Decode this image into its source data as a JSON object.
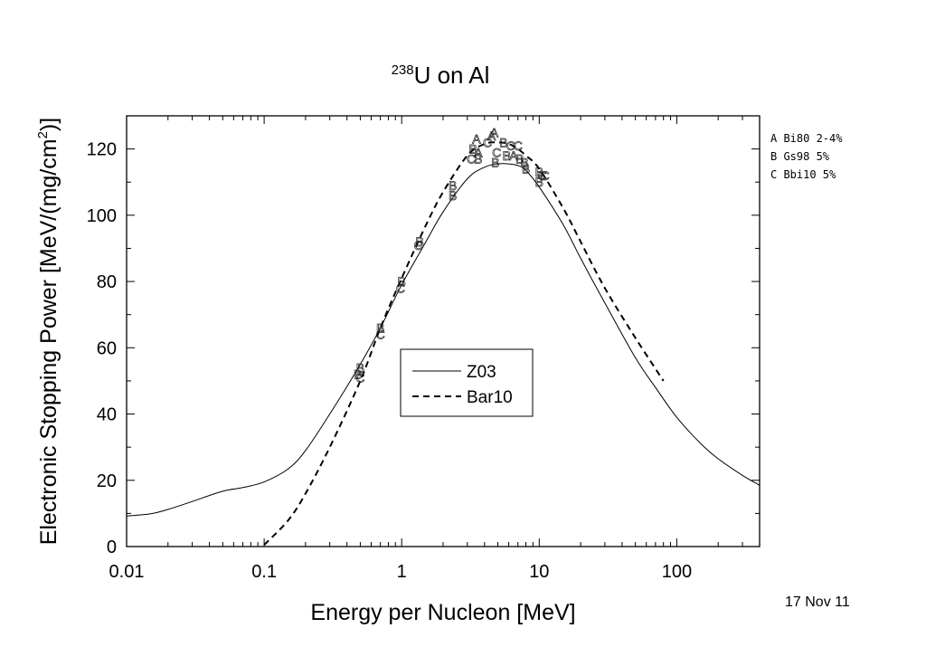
{
  "chart_data": {
    "type": "line",
    "title_sup": "238",
    "title_main": "U on Al",
    "xlabel": "Energy per Nucleon [MeV]",
    "ylabel": "Electronic Stopping Power [MeV/(mg/cm",
    "ylabel_sup": "2",
    "ylabel_end": ")]",
    "xscale": "log",
    "xlim": [
      0.01,
      400
    ],
    "ylim": [
      0,
      130
    ],
    "x_tick_values": [
      0.01,
      0.1,
      1,
      10,
      100
    ],
    "x_tick_labels": [
      "0.01",
      "0.1",
      "1",
      "10",
      "100"
    ],
    "y_tick_values": [
      0,
      20,
      40,
      60,
      80,
      100,
      120
    ],
    "y_tick_labels": [
      "0",
      "20",
      "40",
      "60",
      "80",
      "100",
      "120"
    ],
    "legend_position": "center",
    "series": [
      {
        "name": "Z03",
        "style": "solid",
        "x": [
          0.01,
          0.015,
          0.02,
          0.03,
          0.05,
          0.07,
          0.1,
          0.15,
          0.2,
          0.3,
          0.5,
          0.7,
          1,
          1.5,
          2,
          3,
          4,
          5,
          6,
          7,
          8,
          10,
          15,
          20,
          30,
          50,
          70,
          100,
          150,
          200,
          300,
          400
        ],
        "y": [
          9.2,
          9.9,
          11.2,
          13.6,
          16.7,
          17.8,
          19.5,
          23.5,
          29,
          40,
          55,
          66,
          79,
          92,
          101,
          111,
          114.5,
          115.5,
          115.5,
          115,
          113.5,
          108.5,
          97,
          87,
          73.5,
          57,
          48,
          39,
          31,
          26.5,
          21.5,
          18.5
        ]
      },
      {
        "name": "Bar10",
        "style": "dashed",
        "x": [
          0.1,
          0.15,
          0.2,
          0.3,
          0.5,
          0.7,
          1,
          1.5,
          2,
          3,
          4,
          5,
          6,
          7,
          8,
          10,
          15,
          20,
          30,
          50,
          80
        ],
        "y": [
          0.5,
          8,
          16,
          30,
          50,
          66,
          81,
          97,
          107,
          118,
          121.5,
          122,
          121.5,
          120,
          118,
          114,
          102,
          92,
          78,
          63,
          50
        ]
      }
    ],
    "data_points": [
      {
        "x": 0.48,
        "y": 52,
        "label": "B"
      },
      {
        "x": 0.5,
        "y": 54,
        "label": "B"
      },
      {
        "x": 0.5,
        "y": 51,
        "label": "C"
      },
      {
        "x": 0.7,
        "y": 64,
        "label": "C"
      },
      {
        "x": 0.7,
        "y": 66,
        "label": "B"
      },
      {
        "x": 0.98,
        "y": 78,
        "label": "C"
      },
      {
        "x": 1.0,
        "y": 80,
        "label": "B"
      },
      {
        "x": 1.32,
        "y": 91,
        "label": "C"
      },
      {
        "x": 1.35,
        "y": 92,
        "label": "B"
      },
      {
        "x": 2.35,
        "y": 106,
        "label": "B"
      },
      {
        "x": 2.35,
        "y": 109,
        "label": "B"
      },
      {
        "x": 3.2,
        "y": 117,
        "label": "C"
      },
      {
        "x": 3.3,
        "y": 120,
        "label": "B"
      },
      {
        "x": 3.5,
        "y": 123,
        "label": "A"
      },
      {
        "x": 3.6,
        "y": 117,
        "label": "B"
      },
      {
        "x": 3.6,
        "y": 119,
        "label": "A"
      },
      {
        "x": 4.2,
        "y": 122,
        "label": "C"
      },
      {
        "x": 4.5,
        "y": 124,
        "label": "A"
      },
      {
        "x": 4.7,
        "y": 125,
        "label": "A"
      },
      {
        "x": 4.8,
        "y": 116,
        "label": "B"
      },
      {
        "x": 4.9,
        "y": 119,
        "label": "C"
      },
      {
        "x": 5.5,
        "y": 122,
        "label": "B"
      },
      {
        "x": 5.8,
        "y": 118,
        "label": "B"
      },
      {
        "x": 6.2,
        "y": 121,
        "label": "C"
      },
      {
        "x": 6.5,
        "y": 118,
        "label": "A"
      },
      {
        "x": 7.0,
        "y": 121,
        "label": "C"
      },
      {
        "x": 7.2,
        "y": 117,
        "label": "B"
      },
      {
        "x": 7.8,
        "y": 116,
        "label": "B"
      },
      {
        "x": 8.0,
        "y": 114,
        "label": "B"
      },
      {
        "x": 10.0,
        "y": 110,
        "label": "B"
      },
      {
        "x": 10.0,
        "y": 113,
        "label": "B"
      },
      {
        "x": 10.5,
        "y": 112,
        "label": "C"
      },
      {
        "x": 11.0,
        "y": 112,
        "label": "C"
      }
    ],
    "refs": [
      {
        "key": "A",
        "text": "A Bi80  2-4%"
      },
      {
        "key": "B",
        "text": "B Gs98  5%"
      },
      {
        "key": "C",
        "text": "C Bbi10 5%"
      }
    ],
    "date": "17 Nov 11"
  }
}
